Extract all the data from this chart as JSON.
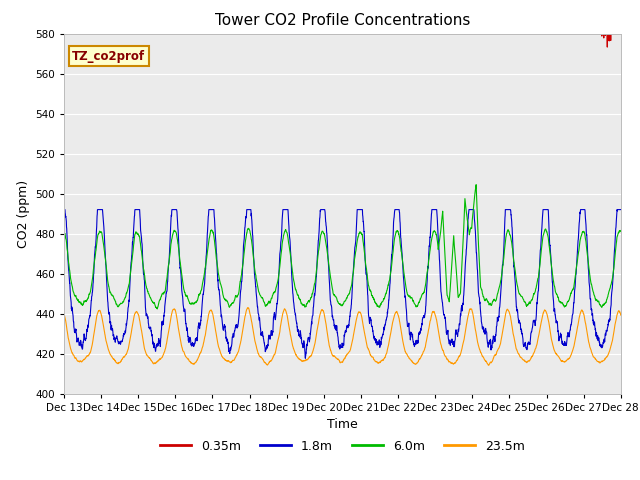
{
  "title": "Tower CO2 Profile Concentrations",
  "xlabel": "Time",
  "ylabel": "CO2 (ppm)",
  "ylim": [
    400,
    580
  ],
  "yticks": [
    400,
    420,
    440,
    460,
    480,
    500,
    520,
    540,
    560,
    580
  ],
  "colors": {
    "0.35m": "#cc0000",
    "1.8m": "#0000cc",
    "6.0m": "#00bb00",
    "23.5m": "#ff9900"
  },
  "legend_label": "TZ_co2prof",
  "xtick_labels": [
    "Dec 13",
    "Dec 14",
    "Dec 15",
    "Dec 16",
    "Dec 17",
    "Dec 18",
    "Dec 19",
    "Dec 20",
    "Dec 21",
    "Dec 22",
    "Dec 23",
    "Dec 24",
    "Dec 25",
    "Dec 26",
    "Dec 27",
    "Dec 28"
  ],
  "n_points": 2880,
  "background_color": "#ffffff",
  "plot_bg_color": "#ebebeb",
  "grid_color": "#ffffff",
  "linewidth": 0.8,
  "figsize": [
    6.4,
    4.8
  ],
  "dpi": 100
}
